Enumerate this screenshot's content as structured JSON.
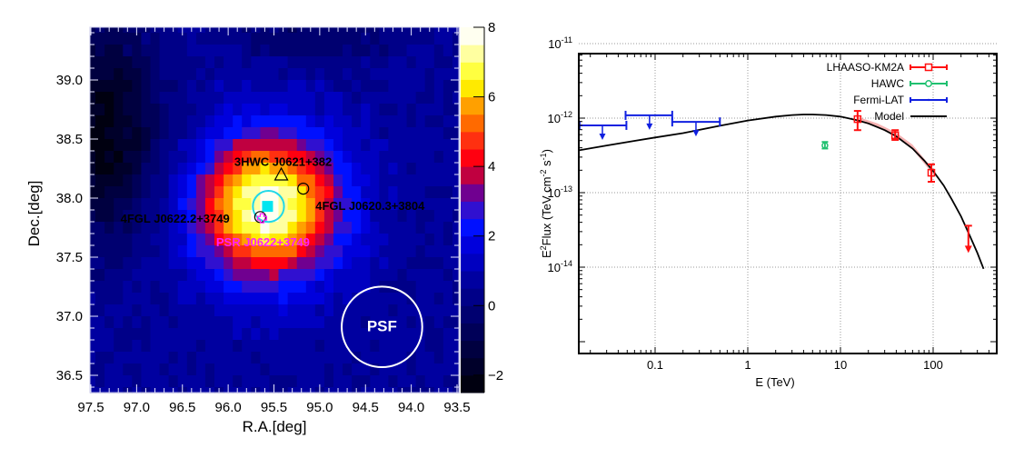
{
  "chart_data": [
    {
      "type": "heatmap",
      "title": "",
      "xlabel": "R.A.[deg]",
      "ylabel": "Dec.[deg]",
      "xlim": [
        97.5,
        93.5
      ],
      "ylim": [
        36.38,
        39.47
      ],
      "x_ticks": [
        "97.5",
        "97.0",
        "96.5",
        "96.0",
        "95.5",
        "95.0",
        "94.5",
        "94.0",
        "93.5"
      ],
      "x_tick_values": [
        97.5,
        97.0,
        96.5,
        96.0,
        95.5,
        95.0,
        94.5,
        94.0,
        93.5
      ],
      "y_ticks": [
        "39.0",
        "38.5",
        "38.0",
        "37.5",
        "37.0",
        "36.5"
      ],
      "y_tick_values": [
        39.0,
        38.5,
        38.0,
        37.5,
        37.0,
        36.5
      ],
      "pixel_size_deg": 0.1,
      "colorbar": {
        "range": [
          -2.5,
          8.0
        ],
        "ticks": [
          "8",
          "6",
          "4",
          "2",
          "0",
          "−2"
        ],
        "tick_values": [
          8,
          6,
          4,
          2,
          0,
          -2
        ],
        "levels": [
          {
            "from": -2.5,
            "to": -2.0,
            "color": "#000010"
          },
          {
            "from": -2.0,
            "to": -1.5,
            "color": "#00002a"
          },
          {
            "from": -1.5,
            "to": -1.0,
            "color": "#000040"
          },
          {
            "from": -1.0,
            "to": -0.5,
            "color": "#000058"
          },
          {
            "from": -0.5,
            "to": 0.0,
            "color": "#000070"
          },
          {
            "from": 0.0,
            "to": 0.5,
            "color": "#000088"
          },
          {
            "from": 0.5,
            "to": 1.0,
            "color": "#0000a0"
          },
          {
            "from": 1.0,
            "to": 1.5,
            "color": "#0000c0"
          },
          {
            "from": 1.5,
            "to": 2.0,
            "color": "#0000dc"
          },
          {
            "from": 2.0,
            "to": 2.5,
            "color": "#0010ff"
          },
          {
            "from": 2.5,
            "to": 3.0,
            "color": "#3010d0"
          },
          {
            "from": 3.0,
            "to": 3.5,
            "color": "#700090"
          },
          {
            "from": 3.5,
            "to": 4.0,
            "color": "#c00040"
          },
          {
            "from": 4.0,
            "to": 4.5,
            "color": "#ff0010"
          },
          {
            "from": 4.5,
            "to": 5.0,
            "color": "#ff3010"
          },
          {
            "from": 5.0,
            "to": 5.5,
            "color": "#ff6a00"
          },
          {
            "from": 5.5,
            "to": 6.0,
            "color": "#ffa000"
          },
          {
            "from": 6.0,
            "to": 6.5,
            "color": "#ffea00"
          },
          {
            "from": 6.5,
            "to": 7.0,
            "color": "#ffff40"
          },
          {
            "from": 7.0,
            "to": 7.5,
            "color": "#ffffa0"
          },
          {
            "from": 7.5,
            "to": 8.0,
            "color": "#fffff0"
          }
        ]
      },
      "emission": {
        "center_ra": 95.57,
        "center_dec": 37.93,
        "peak": 7.9,
        "sigma_deg": 0.42,
        "background": 0.6,
        "dark_region": {
          "center_ra": 97.35,
          "center_dec": 38.55,
          "depth": -2.8,
          "sigma_deg": 0.35
        }
      },
      "markers": [
        {
          "name": "LHAASO best-fit position",
          "symbol": "filled-square",
          "ra": 95.57,
          "dec": 37.93,
          "color": "#00e5f0"
        },
        {
          "name": "LHAASO extension",
          "symbol": "circle",
          "ra": 95.56,
          "dec": 37.93,
          "radius_deg": 0.17,
          "color": "#20d8e8"
        },
        {
          "name": "3HWC J0621+382",
          "symbol": "triangle",
          "ra": 95.42,
          "dec": 38.2,
          "color": "#000000"
        },
        {
          "name": "4FGL J0620.3+3804",
          "symbol": "open-circle",
          "ra": 95.18,
          "dec": 38.08,
          "color": "#000000"
        },
        {
          "name": "4FGL J0622.2+3749",
          "symbol": "open-circle",
          "ra": 95.65,
          "dec": 37.84,
          "color": "#000000"
        },
        {
          "name": "PSR J0622+3749",
          "symbol": "cross",
          "ra": 95.63,
          "dec": 37.83,
          "color": "#ff20ff"
        },
        {
          "name": "PSF",
          "symbol": "circle",
          "ra": 94.32,
          "dec": 36.91,
          "radius_deg": 0.44,
          "color": "#ffffff"
        }
      ],
      "annotations": [
        {
          "text": "3HWC J0621+382",
          "ra": 95.4,
          "dec": 38.31,
          "color": "#000000"
        },
        {
          "text": "4FGL J0620.3+3804",
          "ra": 94.45,
          "dec": 37.94,
          "color": "#000000"
        },
        {
          "text": "4FGL J0622.2+3749",
          "ra": 96.58,
          "dec": 37.83,
          "color": "#000000"
        },
        {
          "text": "PSR J0622+3749",
          "ra": 95.62,
          "dec": 37.63,
          "color": "#ff20ff"
        },
        {
          "text": "PSF",
          "ra": 94.32,
          "dec": 36.91,
          "color": "#ffffff"
        }
      ]
    },
    {
      "type": "scatter",
      "title": "",
      "xlabel": "E (TeV)",
      "ylabel_base": "E",
      "ylabel_sup1": "2",
      "ylabel_mid": "Flux (TeV cm",
      "ylabel_sup2": "-2",
      "ylabel_mid2": " s",
      "ylabel_sup3": "-1",
      "ylabel_end": ")",
      "xscale": "log",
      "yscale": "log",
      "xlim": [
        0.0151,
        500
      ],
      "ylim": [
        5e-15,
        5.1e-11
      ],
      "grid": true,
      "legend_position": "top-right",
      "x_ticks": [
        "0.1",
        "1",
        "10",
        "100"
      ],
      "x_tick_values": [
        0.1,
        1,
        10,
        100
      ],
      "y_ticks": [
        {
          "base": "10",
          "exp": "-11",
          "value": 1e-11
        },
        {
          "base": "10",
          "exp": "-12",
          "value": 1e-12
        },
        {
          "base": "10",
          "exp": "-13",
          "value": 1e-13
        },
        {
          "base": "10",
          "exp": "-14",
          "value": 1e-14
        }
      ],
      "series": [
        {
          "name": "LHAASO-KM2A",
          "color": "#ff1010",
          "marker": "open-square",
          "points": [
            {
              "x": 15.3,
              "y": 9.7e-13,
              "ylo": 6.9e-13,
              "yhi": 1.25e-12
            },
            {
              "x": 38.9,
              "y": 5.9e-13,
              "ylo": 5.1e-13,
              "yhi": 6.9e-13
            },
            {
              "x": 95.6,
              "y": 1.85e-13,
              "ylo": 1.4e-13,
              "yhi": 2.4e-13
            }
          ],
          "upper_limits": [
            {
              "x": 240,
              "y": 3.6e-14
            }
          ],
          "band": {
            "color": "#f4a6a6",
            "x": [
              15,
              25,
              40,
              60,
              100
            ],
            "ylo": [
              9.3e-13,
              7.5e-13,
              5.6e-13,
              3.8e-13,
              1.75e-13
            ],
            "yhi": [
              1.05e-12,
              8.5e-13,
              6.4e-13,
              4.4e-13,
              2.05e-13
            ]
          }
        },
        {
          "name": "HAWC",
          "color": "#20c070",
          "marker": "open-circle",
          "points": [
            {
              "x": 6.8,
              "y": 4.3e-13,
              "ylo": 3.9e-13,
              "yhi": 4.8e-13
            }
          ]
        },
        {
          "name": "Fermi-LAT",
          "color": "#1020e0",
          "marker": "upper-limit",
          "upper_limits": [
            {
              "x": 0.027,
              "xlo": 0.0153,
              "xhi": 0.049,
              "y": 8e-13
            },
            {
              "x": 0.087,
              "xlo": 0.048,
              "xhi": 0.153,
              "y": 1.09e-12
            },
            {
              "x": 0.276,
              "xlo": 0.153,
              "xhi": 0.5,
              "y": 8.9e-13
            }
          ]
        },
        {
          "name": "Model",
          "color": "#000000",
          "marker": "line",
          "curve": {
            "x": [
              0.0151,
              0.03,
              0.06,
              0.1,
              0.2,
              0.5,
              1,
              2,
              3,
              4,
              5,
              7,
              10,
              15,
              20,
              30,
              40,
              60,
              80,
              100,
              130,
              160,
              200,
              250,
              300,
              350
            ],
            "y": [
              3.7e-13,
              4.3e-13,
              4.95e-13,
              5.5e-13,
              6.3e-13,
              7.9e-13,
              9.3e-13,
              1.05e-12,
              1.1e-12,
              1.12e-12,
              1.12e-12,
              1.1e-12,
              1.05e-12,
              9.4e-13,
              8.5e-13,
              6.9e-13,
              5.7e-13,
              3.9e-13,
              2.7e-13,
              1.95e-13,
              1.25e-13,
              8e-14,
              4.8e-14,
              2.6e-14,
              1.55e-14,
              9.5e-15
            ]
          }
        }
      ]
    }
  ]
}
